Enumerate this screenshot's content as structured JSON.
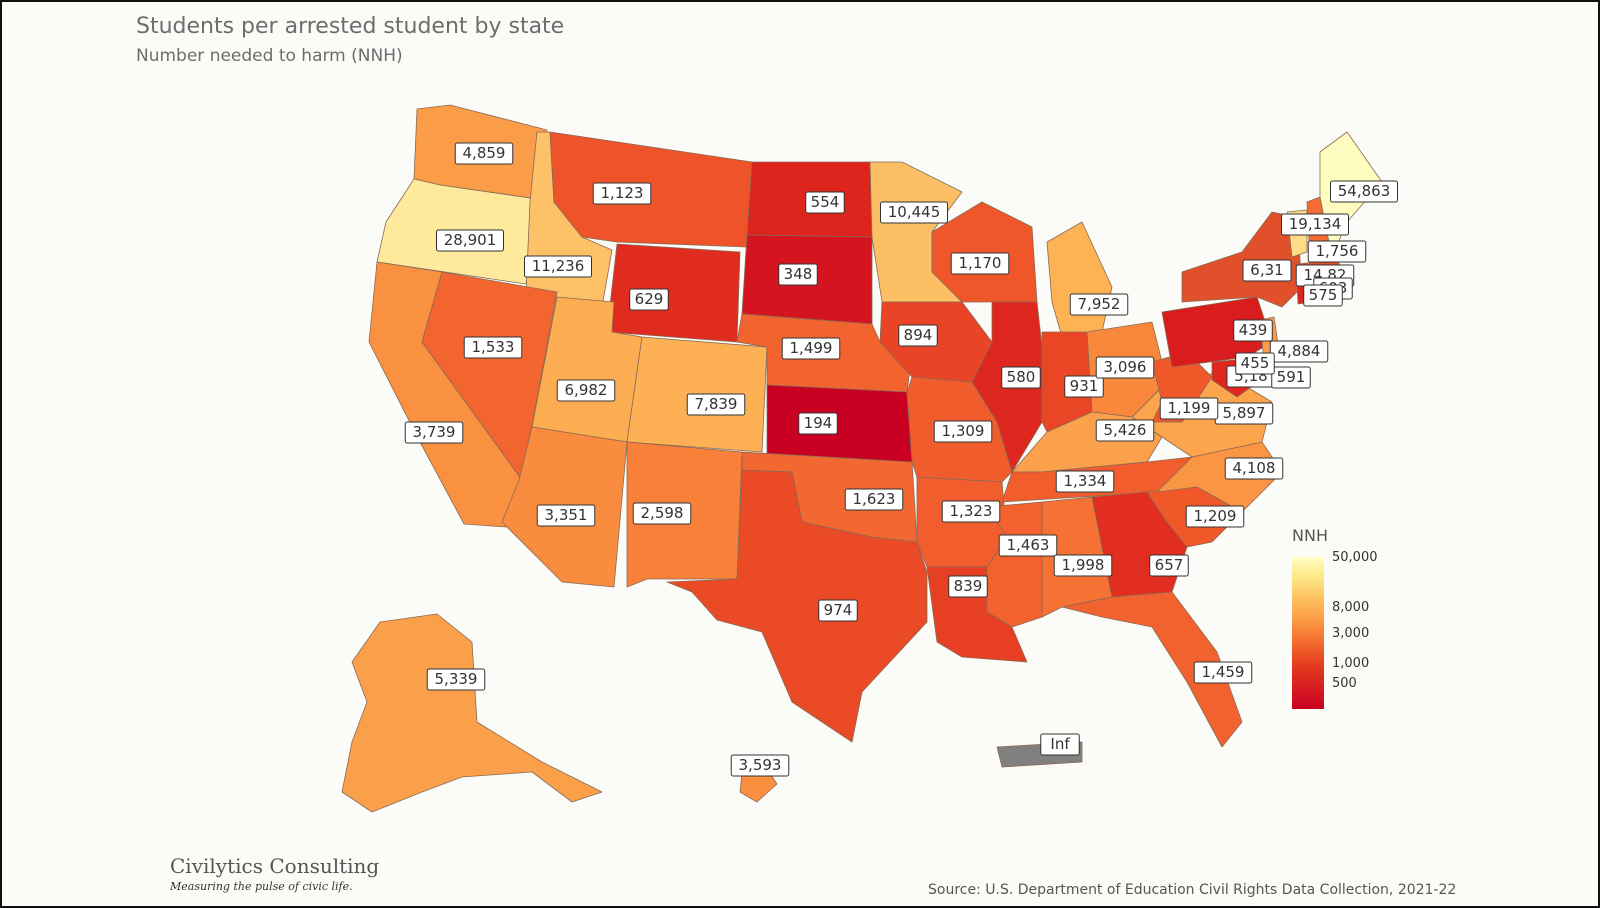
{
  "title": "Students per arrested student by state",
  "subtitle": "Number needed to harm (NNH)",
  "legend": {
    "title": "NNH",
    "ticks": [
      {
        "label": "50,000",
        "value": 50000
      },
      {
        "label": "8,000",
        "value": 8000
      },
      {
        "label": "3,000",
        "value": 3000
      },
      {
        "label": "1,000",
        "value": 1000
      },
      {
        "label": "500",
        "value": 500
      }
    ]
  },
  "branding": {
    "name": "Civilytics Consulting",
    "tagline": "Measuring the pulse of civic life."
  },
  "source": "Source: U.S. Department of Education Civil Rights Data Collection, 2021-22",
  "chart_data": {
    "type": "choropleth",
    "scale": "log",
    "no_data_color": "#808080",
    "colors": {
      "low": "#c90022",
      "mid": "#f36b2c",
      "high": "#ffffc4"
    },
    "states": [
      {
        "state": "WA",
        "label": "4,859",
        "value": 4859
      },
      {
        "state": "OR",
        "label": "28,901",
        "value": 28901
      },
      {
        "state": "CA",
        "label": "3,739",
        "value": 3739
      },
      {
        "state": "ID",
        "label": "11,236",
        "value": 11236
      },
      {
        "state": "NV",
        "label": "1,533",
        "value": 1533
      },
      {
        "state": "MT",
        "label": "1,123",
        "value": 1123
      },
      {
        "state": "WY",
        "label": "629",
        "value": 629
      },
      {
        "state": "UT",
        "label": "6,982",
        "value": 6982
      },
      {
        "state": "AZ",
        "label": "3,351",
        "value": 3351
      },
      {
        "state": "CO",
        "label": "7,839",
        "value": 7839
      },
      {
        "state": "NM",
        "label": "2,598",
        "value": 2598
      },
      {
        "state": "ND",
        "label": "554",
        "value": 554
      },
      {
        "state": "SD",
        "label": "348",
        "value": 348
      },
      {
        "state": "NE",
        "label": "1,499",
        "value": 1499
      },
      {
        "state": "KS",
        "label": "194",
        "value": 194
      },
      {
        "state": "OK",
        "label": "1,623",
        "value": 1623
      },
      {
        "state": "TX",
        "label": "974",
        "value": 974
      },
      {
        "state": "MN",
        "label": "10,445",
        "value": 10445
      },
      {
        "state": "IA",
        "label": "894",
        "value": 894
      },
      {
        "state": "MO",
        "label": "1,309",
        "value": 1309
      },
      {
        "state": "AR",
        "label": "1,323",
        "value": 1323
      },
      {
        "state": "LA",
        "label": "839",
        "value": 839
      },
      {
        "state": "WI",
        "label": "1,170",
        "value": 1170
      },
      {
        "state": "IL",
        "label": "580",
        "value": 580
      },
      {
        "state": "MI",
        "label": "7,952",
        "value": 7952
      },
      {
        "state": "IN",
        "label": "931",
        "value": 931
      },
      {
        "state": "OH",
        "label": "3,096",
        "value": 3096
      },
      {
        "state": "KY",
        "label": "5,426",
        "value": 5426
      },
      {
        "state": "TN",
        "label": "1,334",
        "value": 1334
      },
      {
        "state": "MS",
        "label": "1,463",
        "value": 1463
      },
      {
        "state": "AL",
        "label": "1,998",
        "value": 1998
      },
      {
        "state": "GA",
        "label": "657",
        "value": 657
      },
      {
        "state": "FL",
        "label": "1,459",
        "value": 1459
      },
      {
        "state": "SC",
        "label": "1,209",
        "value": 1209
      },
      {
        "state": "NC",
        "label": "4,108",
        "value": 4108
      },
      {
        "state": "VA",
        "label": "5,897",
        "value": 5897
      },
      {
        "state": "WV",
        "label": "1,199",
        "value": 1199
      },
      {
        "state": "PA",
        "label": "439",
        "value": 439
      },
      {
        "state": "NY",
        "label": "6,31",
        "value": null
      },
      {
        "state": "VT",
        "label": "19,134",
        "value": 19134
      },
      {
        "state": "NH",
        "label": "1,756",
        "value": 1756
      },
      {
        "state": "ME",
        "label": "54,863",
        "value": 54863
      },
      {
        "state": "MA",
        "label": "14,82",
        "value": null
      },
      {
        "state": "RI",
        "label": "603",
        "value": 603
      },
      {
        "state": "CT",
        "label": "575",
        "value": 575
      },
      {
        "state": "NJ",
        "label": "4,884",
        "value": 4884
      },
      {
        "state": "DE",
        "label": "5,18",
        "value": null
      },
      {
        "state": "MD",
        "label": "591",
        "value": 591
      },
      {
        "state": "DC",
        "label": "455",
        "value": null
      },
      {
        "state": "AK",
        "label": "5,339",
        "value": 5339
      },
      {
        "state": "HI",
        "label": "3,593",
        "value": 3593
      },
      {
        "state": "PR",
        "label": "Inf",
        "value": null
      }
    ]
  }
}
